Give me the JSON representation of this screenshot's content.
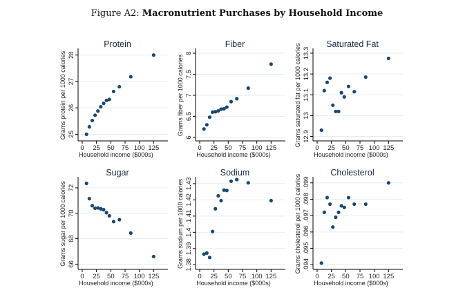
{
  "figure": {
    "label": "Figure A2:",
    "title": "Macronutrient Purchases by Household Income"
  },
  "colors": {
    "marker": "#1a476f",
    "grid": "#e4eef0",
    "axis": "#000000",
    "title": "#1b2a4a"
  },
  "chart_data": [
    {
      "type": "scatter",
      "title": "Protein",
      "xlabel": "Household income ($000s)",
      "ylabel": "Grams protein per 1000 calories",
      "xticks": [
        0,
        25,
        50,
        75,
        100,
        125
      ],
      "yticks": [
        "25",
        "26",
        "27",
        "28"
      ],
      "ytick_values": [
        25,
        26,
        27,
        28
      ],
      "xlim": [
        0,
        150
      ],
      "ylim": [
        24.8,
        28.15
      ],
      "grid": true,
      "x": [
        7.5,
        12.5,
        17.5,
        22.5,
        27.5,
        32.5,
        37.5,
        42.5,
        47.5,
        55,
        65,
        85,
        125
      ],
      "y": [
        25.0,
        25.28,
        25.52,
        25.72,
        25.88,
        26.04,
        26.17,
        26.28,
        26.32,
        26.62,
        26.8,
        27.18,
        28.0
      ]
    },
    {
      "type": "scatter",
      "title": "Fiber",
      "xlabel": "Household income ($000s)",
      "ylabel": "Grams fiber per 1000 calories",
      "xticks": [
        0,
        25,
        50,
        75,
        100,
        125
      ],
      "yticks": [
        "6",
        "6.5",
        "7",
        "7.5",
        "8"
      ],
      "ytick_values": [
        6,
        6.5,
        7,
        7.5,
        8
      ],
      "xlim": [
        0,
        150
      ],
      "ylim": [
        5.95,
        8.05
      ],
      "grid": true,
      "x": [
        7.5,
        12.5,
        17.5,
        22.5,
        27.5,
        32.5,
        37.5,
        42.5,
        47.5,
        55,
        65,
        85,
        125
      ],
      "y": [
        6.2,
        6.3,
        6.48,
        6.6,
        6.61,
        6.63,
        6.67,
        6.68,
        6.72,
        6.85,
        6.92,
        7.17,
        7.74
      ]
    },
    {
      "type": "scatter",
      "title": "Saturated Fat",
      "xlabel": "Household income ($000s)",
      "ylabel": "Grams saturated fat per 1000 calories",
      "xticks": [
        0,
        25,
        50,
        75,
        100,
        125
      ],
      "yticks": [
        "12.9",
        "13",
        "13.1",
        "13.2",
        "13.3"
      ],
      "ytick_values": [
        12.9,
        13.0,
        13.1,
        13.2,
        13.3
      ],
      "xlim": [
        0,
        150
      ],
      "ylim": [
        12.885,
        13.31
      ],
      "grid": true,
      "x": [
        7.5,
        12.5,
        17.5,
        22.5,
        27.5,
        32.5,
        37.5,
        42.5,
        47.5,
        55,
        65,
        85,
        125
      ],
      "y": [
        12.93,
        13.12,
        13.16,
        13.18,
        13.05,
        13.02,
        13.02,
        13.11,
        13.09,
        13.14,
        13.115,
        13.185,
        13.275
      ]
    },
    {
      "type": "scatter",
      "title": "Sugar",
      "xlabel": "Household income ($000s)",
      "ylabel": "Grams sugar per 1000 calories",
      "xticks": [
        0,
        25,
        50,
        75,
        100,
        125
      ],
      "yticks": [
        "66",
        "68",
        "70",
        "72"
      ],
      "ytick_values": [
        66,
        68,
        70,
        72
      ],
      "xlim": [
        0,
        150
      ],
      "ylim": [
        65.7,
        72.65
      ],
      "grid": true,
      "x": [
        7.5,
        12.5,
        17.5,
        22.5,
        27.5,
        32.5,
        37.5,
        42.5,
        47.5,
        55,
        65,
        85,
        125
      ],
      "y": [
        72.35,
        71.15,
        70.6,
        70.4,
        70.42,
        70.35,
        70.28,
        70.05,
        69.8,
        69.35,
        69.5,
        68.45,
        66.6
      ]
    },
    {
      "type": "scatter",
      "title": "Sodium",
      "xlabel": "Household income ($000s)",
      "ylabel": "Grams sodium per 1000 calories",
      "xticks": [
        0,
        25,
        50,
        75,
        100,
        125
      ],
      "yticks": [
        "1.38",
        "1.39",
        "1.4",
        "1.41",
        "1.42",
        "1.43"
      ],
      "ytick_values": [
        1.38,
        1.39,
        1.4,
        1.41,
        1.42,
        1.43
      ],
      "xlim": [
        0,
        150
      ],
      "ylim": [
        1.378,
        1.4325
      ],
      "grid": true,
      "x": [
        7.5,
        12.5,
        17.5,
        22.5,
        27.5,
        32.5,
        37.5,
        42.5,
        47.5,
        55,
        65,
        85,
        125
      ],
      "y": [
        1.3865,
        1.3872,
        1.3845,
        1.4005,
        1.4145,
        1.4225,
        1.4195,
        1.426,
        1.4258,
        1.4315,
        1.4325,
        1.4305,
        1.4195
      ]
    },
    {
      "type": "scatter",
      "title": "Cholesterol",
      "xlabel": "Household income ($000s)",
      "ylabel": "Grams cholesterol per 1000 calories",
      "xticks": [
        0,
        25,
        50,
        75,
        100,
        125
      ],
      "yticks": [
        ".094",
        ".095",
        ".096",
        ".097",
        ".098",
        ".099"
      ],
      "ytick_values": [
        0.094,
        0.095,
        0.096,
        0.097,
        0.098,
        0.099
      ],
      "xlim": [
        0,
        150
      ],
      "ylim": [
        0.0938,
        0.0992
      ],
      "grid": true,
      "x": [
        7.5,
        12.5,
        17.5,
        22.5,
        27.5,
        32.5,
        37.5,
        42.5,
        47.5,
        55,
        65,
        85,
        125
      ],
      "y": [
        0.0941,
        0.0972,
        0.0981,
        0.0977,
        0.0963,
        0.0969,
        0.0972,
        0.0976,
        0.0975,
        0.0981,
        0.0977,
        0.0977,
        0.099
      ]
    }
  ]
}
